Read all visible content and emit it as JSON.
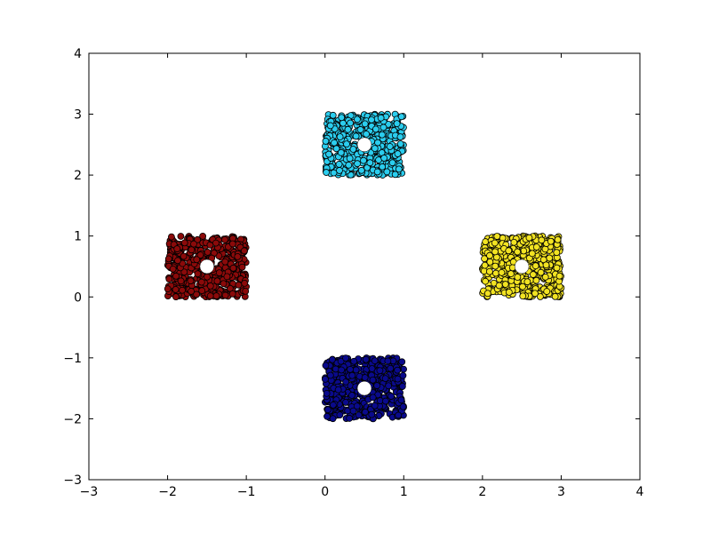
{
  "chart_data": {
    "type": "scatter",
    "title": "",
    "xlabel": "",
    "ylabel": "",
    "xlim": [
      -3,
      4
    ],
    "ylim": [
      -3,
      3.999
    ],
    "x_ticks": [
      -3,
      -2,
      -1,
      0,
      1,
      2,
      3,
      4
    ],
    "y_ticks": [
      -3,
      -2,
      -1,
      0,
      1,
      2,
      3,
      4
    ],
    "x_tick_labels": [
      "−3",
      "−2",
      "−1",
      "0",
      "1",
      "2",
      "3",
      "4"
    ],
    "y_tick_labels": [
      "−3",
      "−2",
      "−1",
      "0",
      "1",
      "2",
      "3",
      "4"
    ],
    "grid": false,
    "legend": "none",
    "clusters": [
      {
        "x_range": [
          0,
          1
        ],
        "y_range": [
          2,
          3
        ],
        "color": "#2bcdee",
        "centroid": [
          0.5,
          2.5
        ]
      },
      {
        "x_range": [
          -2,
          -1
        ],
        "y_range": [
          0,
          1
        ],
        "color": "#8b0a0a",
        "centroid": [
          -1.5,
          0.5
        ]
      },
      {
        "x_range": [
          2,
          3
        ],
        "y_range": [
          0,
          1
        ],
        "color": "#f2e322",
        "centroid": [
          2.5,
          0.5
        ]
      },
      {
        "x_range": [
          0,
          1
        ],
        "y_range": [
          -2,
          -1
        ],
        "color": "#0a0a8c",
        "centroid": [
          0.5,
          -1.5
        ]
      }
    ],
    "points_per_cluster": 500,
    "centroid_color": "#ffffff"
  }
}
